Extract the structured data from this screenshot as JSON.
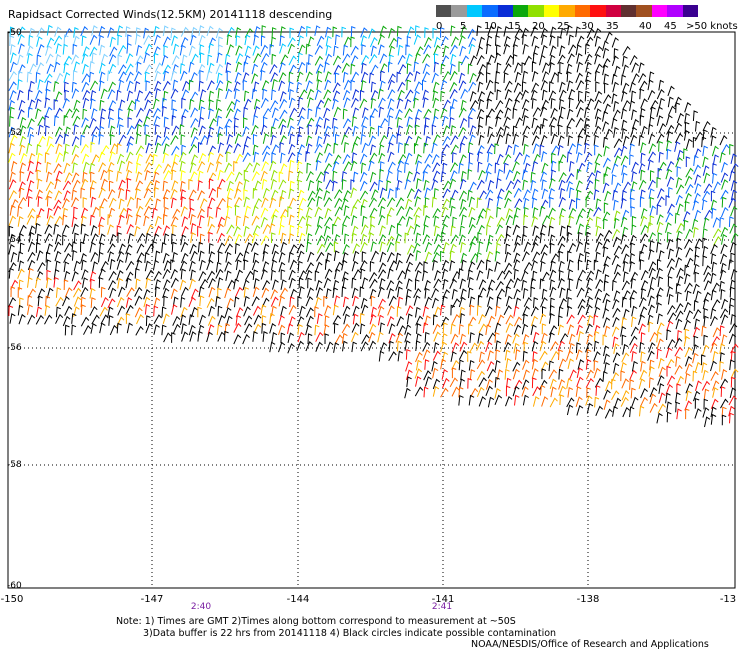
{
  "title": "Rapidsact Corrected Winds(12.5KM) 20141118 descending",
  "legend": {
    "labels": [
      "0",
      "5",
      "10",
      "15",
      "20",
      "25",
      "30",
      "35",
      "40",
      "45",
      ">50 knots"
    ],
    "colors": [
      "#505050",
      "#9a9a9a",
      "#00c8ff",
      "#0a6cff",
      "#0a2dd6",
      "#0ca80c",
      "#90e000",
      "#ffff00",
      "#ffaa00",
      "#ff6a00",
      "#ff1010",
      "#d00040",
      "#603030",
      "#a05020",
      "#ff00ff",
      "#b000ff",
      "#3a0090"
    ]
  },
  "map": {
    "lat_labels": [
      "-50",
      "-52",
      "-54",
      "-56",
      "-58",
      "-60"
    ],
    "lon_labels": [
      "-150",
      "-147",
      "-144",
      "-141",
      "-138",
      "-13"
    ],
    "time_labels": [
      "2:40",
      "2:41"
    ],
    "lat_range": [
      -60,
      -50
    ],
    "lon_range": [
      -150,
      -135
    ]
  },
  "notes": [
    "Note: 1) Times are GMT 2)Times along bottom correspond to measurement at ~50S",
    "3)Data buffer is 22 hrs from 20141118 4) Black circles indicate possible contamination"
  ],
  "credit": "NOAA/NESDIS/Office of Research and Applications"
}
